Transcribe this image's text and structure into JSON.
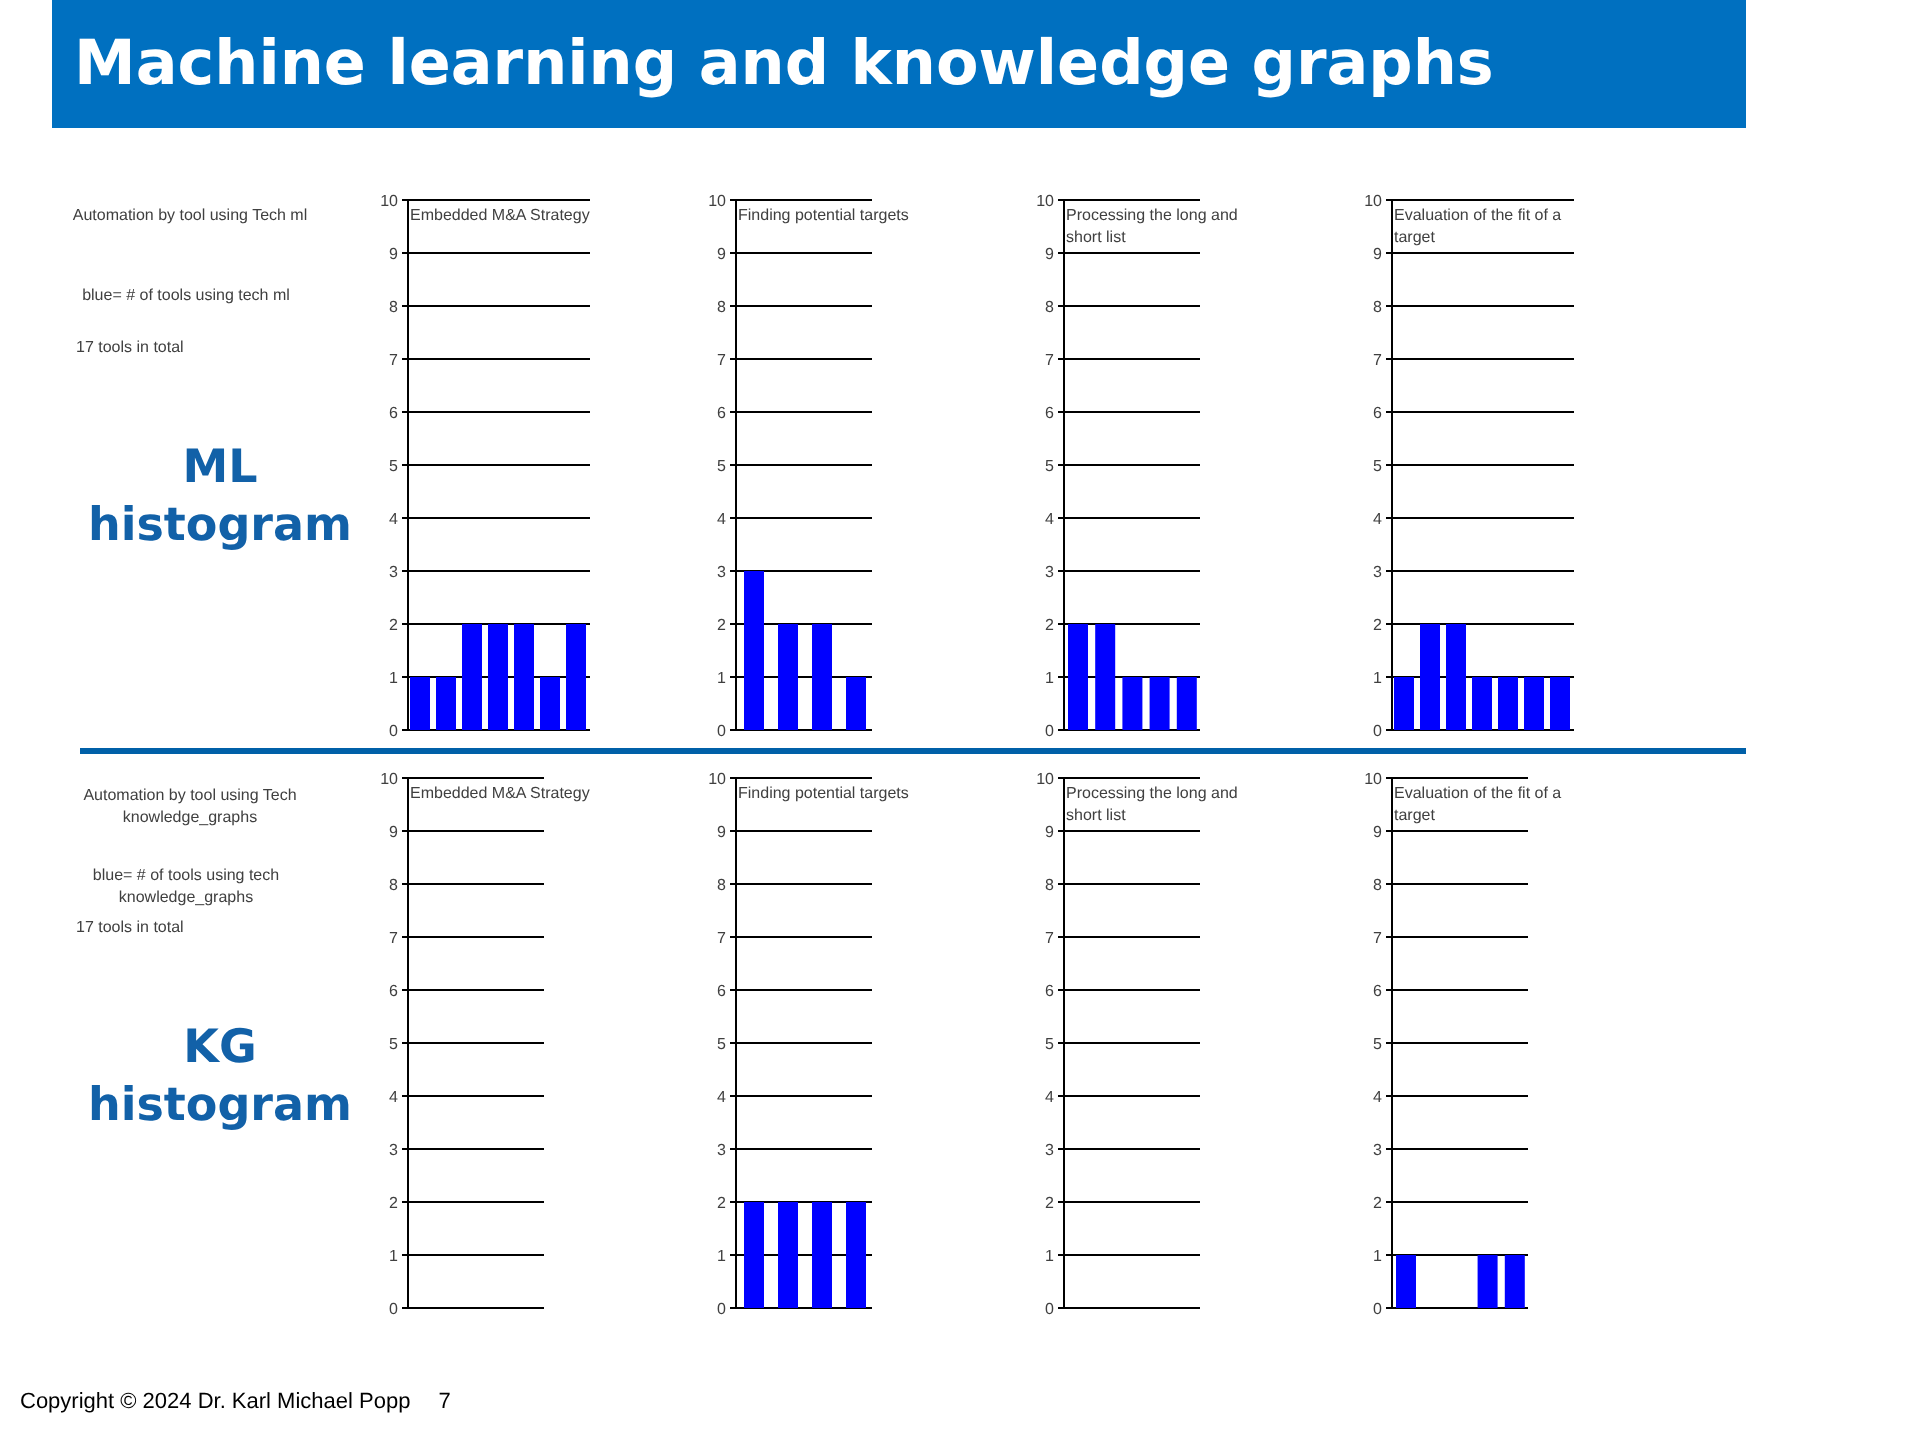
{
  "chart_data": [
    {
      "type": "other",
      "title": "Machine learning and knowledge graphs"
    },
    {
      "type": "other",
      "title": "ML histogram",
      "annotations": [
        "Automation by tool using Tech ml",
        "blue= # of tools using tech ml",
        "17 tools in total"
      ]
    },
    {
      "type": "bar",
      "title": "Embedded M&A Strategy",
      "categories": [
        null,
        null,
        null,
        null,
        null,
        null,
        null
      ],
      "values": [
        1,
        1,
        2,
        2,
        2,
        1,
        2
      ],
      "color": "#0000ff",
      "ylim": [
        0,
        10
      ],
      "yticks": [
        0,
        1,
        2,
        3,
        4,
        5,
        6,
        7,
        8,
        9,
        10
      ],
      "grid": "y",
      "tick_labels": "y"
    },
    {
      "type": "bar",
      "title": "Finding potential targets",
      "categories": [
        null,
        null,
        null,
        null
      ],
      "values": [
        3,
        2,
        2,
        1
      ],
      "color": "#0000ff",
      "ylim": [
        0,
        10
      ],
      "yticks": [
        0,
        1,
        2,
        3,
        4,
        5,
        6,
        7,
        8,
        9,
        10
      ],
      "grid": "y",
      "tick_labels": "y"
    },
    {
      "type": "bar",
      "title": "Processing the long and short list",
      "categories": [
        null,
        null,
        null,
        null,
        null
      ],
      "values": [
        2,
        2,
        1,
        1,
        1
      ],
      "color": "#0000ff",
      "ylim": [
        0,
        10
      ],
      "yticks": [
        0,
        1,
        2,
        3,
        4,
        5,
        6,
        7,
        8,
        9,
        10
      ],
      "grid": "y",
      "tick_labels": "y"
    },
    {
      "type": "bar",
      "title": "Evaluation of the fit of a target",
      "categories": [
        null,
        null,
        null,
        null,
        null,
        null,
        null
      ],
      "values": [
        1,
        2,
        2,
        1,
        1,
        1,
        1
      ],
      "color": "#0000ff",
      "ylim": [
        0,
        10
      ],
      "yticks": [
        0,
        1,
        2,
        3,
        4,
        5,
        6,
        7,
        8,
        9,
        10
      ],
      "grid": "y",
      "tick_labels": "y"
    },
    {
      "type": "other",
      "title": "KG histogram",
      "annotations": [
        "Automation by tool using Tech knowledge_graphs",
        "blue= # of tools using tech knowledge_graphs",
        "17 tools in total"
      ]
    },
    {
      "type": "bar",
      "title": "Embedded M&A Strategy",
      "categories": [
        null,
        null,
        null,
        null
      ],
      "values": [
        0,
        0,
        0,
        0
      ],
      "color": "#0000ff",
      "ylim": [
        0,
        10
      ],
      "yticks": [
        0,
        1,
        2,
        3,
        4,
        5,
        6,
        7,
        8,
        9,
        10
      ],
      "grid": "y",
      "tick_labels": "y"
    },
    {
      "type": "bar",
      "title": "Finding potential targets",
      "categories": [
        null,
        null,
        null,
        null
      ],
      "values": [
        2,
        2,
        2,
        2
      ],
      "color": "#0000ff",
      "ylim": [
        0,
        10
      ],
      "yticks": [
        0,
        1,
        2,
        3,
        4,
        5,
        6,
        7,
        8,
        9,
        10
      ],
      "grid": "y",
      "tick_labels": "y"
    },
    {
      "type": "bar",
      "title": "Processing the long and short list",
      "categories": [
        null,
        null,
        null,
        null
      ],
      "values": [
        0,
        0,
        0,
        0
      ],
      "color": "#0000ff",
      "ylim": [
        0,
        10
      ],
      "yticks": [
        0,
        1,
        2,
        3,
        4,
        5,
        6,
        7,
        8,
        9,
        10
      ],
      "grid": "y",
      "tick_labels": "y"
    },
    {
      "type": "bar",
      "title": "Evaluation of the fit of a target",
      "categories": [
        null,
        null,
        null,
        null,
        null
      ],
      "values": [
        1,
        null,
        null,
        1,
        1
      ],
      "color": "#0000ff",
      "ylim": [
        0,
        10
      ],
      "yticks": [
        0,
        1,
        2,
        3,
        4,
        5,
        6,
        7,
        8,
        9,
        10
      ],
      "grid": "y",
      "tick_labels": "y"
    },
    {
      "type": "other",
      "annotations": [
        "Copyright © 2024 Dr. Karl Michael Popp",
        "7"
      ]
    }
  ]
}
